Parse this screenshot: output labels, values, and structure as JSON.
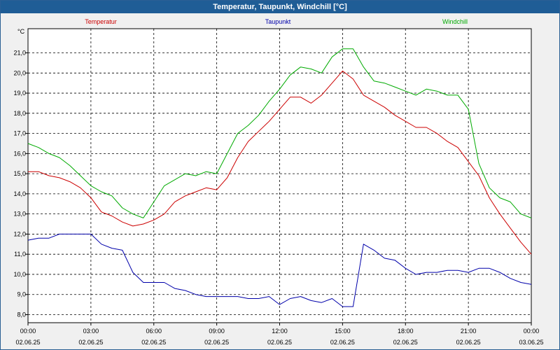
{
  "window": {
    "title": "Temperatur, Taupunkt, Windchill [°C]"
  },
  "chart_data": {
    "type": "line",
    "title": "Temperatur, Taupunkt, Windchill [°C]",
    "ylabel": "°C",
    "xlabel": "",
    "ylim": [
      7.6,
      22.2
    ],
    "xlim": [
      0,
      24
    ],
    "y_ticks": [
      "8,0",
      "9,0",
      "10,0",
      "11,0",
      "12,0",
      "13,0",
      "14,0",
      "15,0",
      "16,0",
      "17,0",
      "18,0",
      "19,0",
      "20,0",
      "21,0"
    ],
    "x_ticks": [
      {
        "x": 0,
        "time": "00:00",
        "date": "02.06.25"
      },
      {
        "x": 3,
        "time": "03:00",
        "date": "02.06.25"
      },
      {
        "x": 6,
        "time": "06:00",
        "date": "02.06.25"
      },
      {
        "x": 9,
        "time": "09:00",
        "date": "02.06.25"
      },
      {
        "x": 12,
        "time": "12:00",
        "date": "02.06.25"
      },
      {
        "x": 15,
        "time": "15:00",
        "date": "02.06.25"
      },
      {
        "x": 18,
        "time": "18:00",
        "date": "02.06.25"
      },
      {
        "x": 21,
        "time": "21:00",
        "date": "02.06.25"
      },
      {
        "x": 24,
        "time": "00:00",
        "date": "03.06.25"
      }
    ],
    "grid": true,
    "legend_position": "top",
    "series": [
      {
        "name": "Temperatur",
        "color": "#cc0000",
        "points": [
          [
            0,
            15.1
          ],
          [
            0.5,
            15.1
          ],
          [
            1,
            14.9
          ],
          [
            1.5,
            14.8
          ],
          [
            2,
            14.6
          ],
          [
            2.5,
            14.3
          ],
          [
            3,
            13.8
          ],
          [
            3.5,
            13.1
          ],
          [
            4,
            12.9
          ],
          [
            4.5,
            12.6
          ],
          [
            5,
            12.4
          ],
          [
            5.5,
            12.5
          ],
          [
            6,
            12.7
          ],
          [
            6.5,
            13.0
          ],
          [
            7,
            13.6
          ],
          [
            7.5,
            13.9
          ],
          [
            8,
            14.1
          ],
          [
            8.5,
            14.3
          ],
          [
            9,
            14.2
          ],
          [
            9.5,
            14.8
          ],
          [
            10,
            15.8
          ],
          [
            10.5,
            16.6
          ],
          [
            11,
            17.1
          ],
          [
            11.5,
            17.6
          ],
          [
            12,
            18.2
          ],
          [
            12.5,
            18.8
          ],
          [
            13,
            18.8
          ],
          [
            13.5,
            18.5
          ],
          [
            14,
            18.9
          ],
          [
            14.5,
            19.5
          ],
          [
            15,
            20.1
          ],
          [
            15.5,
            19.7
          ],
          [
            16,
            18.9
          ],
          [
            16.5,
            18.6
          ],
          [
            17,
            18.3
          ],
          [
            17.5,
            17.9
          ],
          [
            18,
            17.6
          ],
          [
            18.5,
            17.3
          ],
          [
            19,
            17.3
          ],
          [
            19.5,
            17.0
          ],
          [
            20,
            16.6
          ],
          [
            20.5,
            16.3
          ],
          [
            21,
            15.6
          ],
          [
            21.5,
            14.9
          ],
          [
            22,
            13.8
          ],
          [
            22.5,
            13.0
          ],
          [
            23,
            12.3
          ],
          [
            23.5,
            11.6
          ],
          [
            24,
            11.0
          ]
        ]
      },
      {
        "name": "Taupunkt",
        "color": "#0000aa",
        "points": [
          [
            0,
            11.7
          ],
          [
            0.5,
            11.8
          ],
          [
            1,
            11.8
          ],
          [
            1.5,
            12.0
          ],
          [
            2,
            12.0
          ],
          [
            2.5,
            12.0
          ],
          [
            3,
            12.0
          ],
          [
            3.5,
            11.5
          ],
          [
            4,
            11.3
          ],
          [
            4.5,
            11.2
          ],
          [
            5,
            10.1
          ],
          [
            5.5,
            9.6
          ],
          [
            6,
            9.6
          ],
          [
            6.5,
            9.6
          ],
          [
            7,
            9.3
          ],
          [
            7.5,
            9.2
          ],
          [
            8,
            9.0
          ],
          [
            8.5,
            8.9
          ],
          [
            9,
            8.9
          ],
          [
            9.5,
            8.9
          ],
          [
            10,
            8.9
          ],
          [
            10.5,
            8.8
          ],
          [
            11,
            8.8
          ],
          [
            11.5,
            8.9
          ],
          [
            12,
            8.5
          ],
          [
            12.5,
            8.8
          ],
          [
            13,
            8.9
          ],
          [
            13.5,
            8.7
          ],
          [
            14,
            8.6
          ],
          [
            14.5,
            8.8
          ],
          [
            15,
            8.4
          ],
          [
            15.5,
            8.4
          ],
          [
            16,
            11.5
          ],
          [
            16.5,
            11.2
          ],
          [
            17,
            10.8
          ],
          [
            17.5,
            10.7
          ],
          [
            18,
            10.3
          ],
          [
            18.5,
            10.0
          ],
          [
            19,
            10.1
          ],
          [
            19.5,
            10.1
          ],
          [
            20,
            10.2
          ],
          [
            20.5,
            10.2
          ],
          [
            21,
            10.1
          ],
          [
            21.5,
            10.3
          ],
          [
            22,
            10.3
          ],
          [
            22.5,
            10.1
          ],
          [
            23,
            9.8
          ],
          [
            23.5,
            9.6
          ],
          [
            24,
            9.5
          ]
        ]
      },
      {
        "name": "Windchill",
        "color": "#00aa00",
        "points": [
          [
            0,
            16.5
          ],
          [
            0.5,
            16.3
          ],
          [
            1,
            16.0
          ],
          [
            1.5,
            15.8
          ],
          [
            2,
            15.4
          ],
          [
            2.5,
            14.9
          ],
          [
            3,
            14.4
          ],
          [
            3.5,
            14.1
          ],
          [
            4,
            13.9
          ],
          [
            4.5,
            13.3
          ],
          [
            5,
            13.0
          ],
          [
            5.5,
            12.8
          ],
          [
            6,
            13.6
          ],
          [
            6.5,
            14.4
          ],
          [
            7,
            14.7
          ],
          [
            7.5,
            15.0
          ],
          [
            8,
            14.9
          ],
          [
            8.5,
            15.1
          ],
          [
            9,
            15.0
          ],
          [
            9.5,
            16.0
          ],
          [
            10,
            17.0
          ],
          [
            10.5,
            17.4
          ],
          [
            11,
            17.9
          ],
          [
            11.5,
            18.6
          ],
          [
            12,
            19.2
          ],
          [
            12.5,
            19.9
          ],
          [
            13,
            20.3
          ],
          [
            13.5,
            20.2
          ],
          [
            14,
            20.0
          ],
          [
            14.5,
            20.8
          ],
          [
            15,
            21.2
          ],
          [
            15.5,
            21.2
          ],
          [
            16,
            20.3
          ],
          [
            16.5,
            19.6
          ],
          [
            17,
            19.5
          ],
          [
            17.5,
            19.3
          ],
          [
            18,
            19.1
          ],
          [
            18.5,
            18.9
          ],
          [
            19,
            19.2
          ],
          [
            19.5,
            19.1
          ],
          [
            20,
            18.9
          ],
          [
            20.5,
            18.9
          ],
          [
            21,
            18.2
          ],
          [
            21.5,
            15.5
          ],
          [
            22,
            14.3
          ],
          [
            22.5,
            13.8
          ],
          [
            23,
            13.6
          ],
          [
            23.5,
            13.0
          ],
          [
            24,
            12.8
          ]
        ]
      }
    ]
  }
}
